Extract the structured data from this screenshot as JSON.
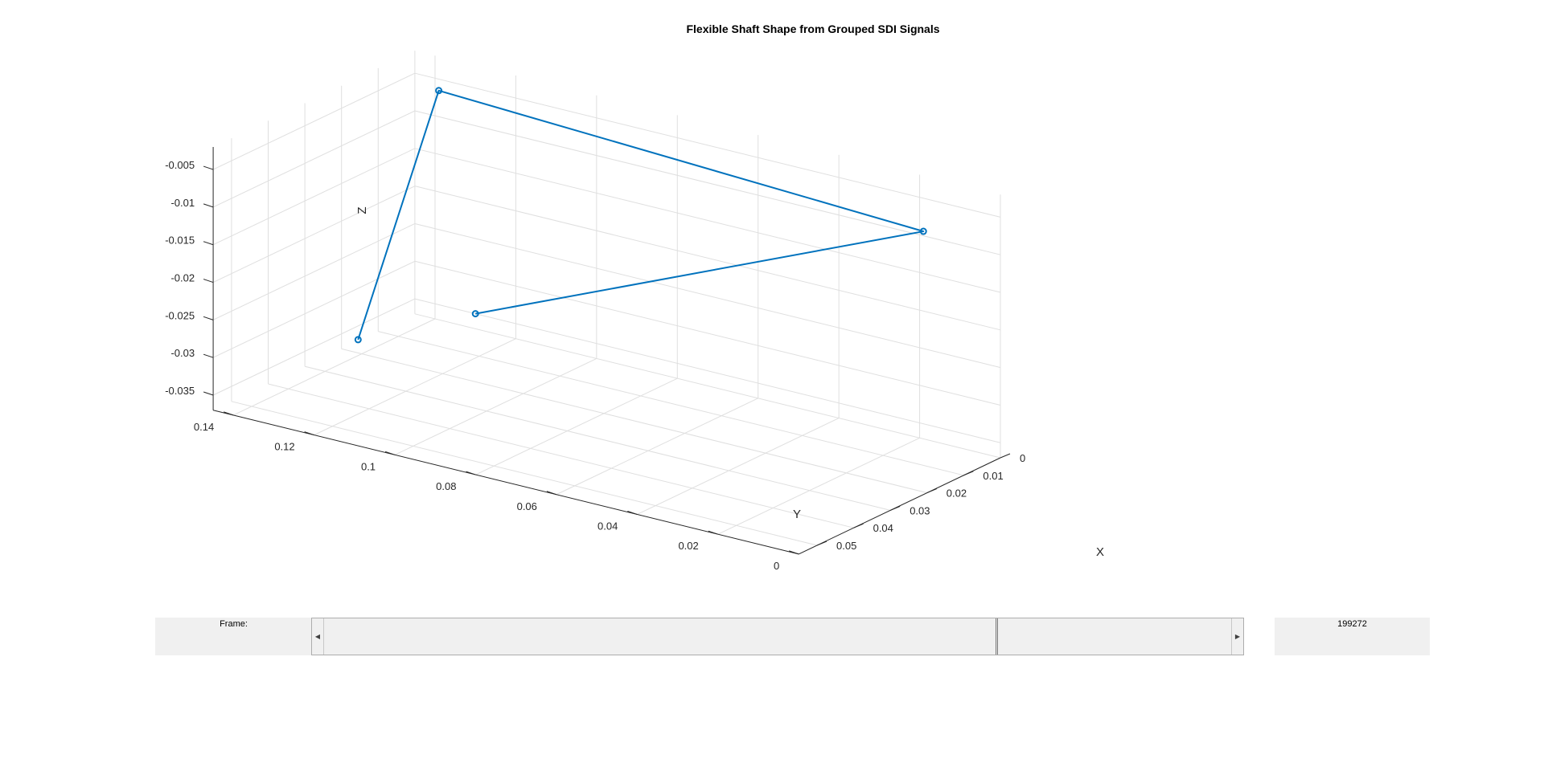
{
  "figure": {
    "title": "Flexible Shaft Shape from Grouped SDI Signals"
  },
  "chart_data": {
    "type": "line3d",
    "title": "Flexible Shaft Shape from Grouped SDI Signals",
    "xlabel": "X",
    "ylabel": "Y",
    "zlabel": "Z",
    "xlim": [
      0,
      0.055
    ],
    "ylim": [
      0,
      0.145
    ],
    "zlim": [
      -0.037,
      -0.002
    ],
    "xticks": [
      0,
      0.01,
      0.02,
      0.03,
      0.04,
      0.05
    ],
    "xtick_labels": [
      "0",
      "0.01",
      "0.02",
      "0.03",
      "0.04",
      "0.05"
    ],
    "yticks": [
      0,
      0.02,
      0.04,
      0.06,
      0.08,
      0.1,
      0.12,
      0.14
    ],
    "ytick_labels": [
      "0",
      "0.02",
      "0.04",
      "0.06",
      "0.08",
      "0.1",
      "0.12",
      "0.14"
    ],
    "zticks": [
      -0.005,
      -0.01,
      -0.015,
      -0.02,
      -0.025,
      -0.03,
      -0.035
    ],
    "ztick_labels": [
      "-0.005",
      "-0.01",
      "-0.015",
      "-0.02",
      "-0.025",
      "-0.03",
      "-0.035"
    ],
    "grid": true,
    "color": "#0072bd",
    "marker": "circle",
    "points": [
      {
        "x": 0.032,
        "y": 0.13,
        "z": -0.031
      },
      {
        "x": 0.01,
        "y": 0.13,
        "z": -0.003
      },
      {
        "x": 0.021,
        "y": 0.0,
        "z": -0.002
      },
      {
        "x": 0.0,
        "y": 0.13,
        "z": -0.035
      }
    ]
  },
  "controls": {
    "frame_label": "Frame:",
    "frame_value": "199272",
    "slider_fraction": 0.74
  }
}
